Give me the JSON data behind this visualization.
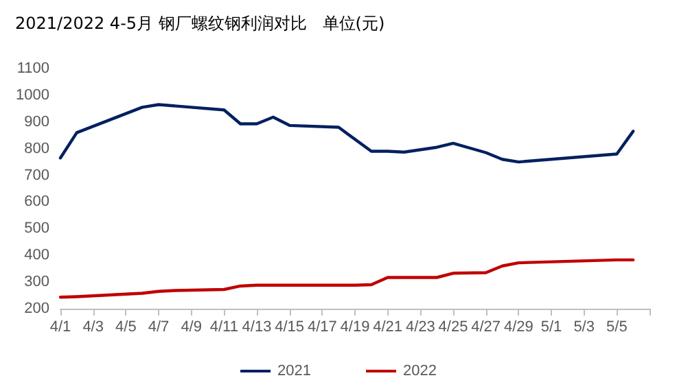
{
  "chart_data": {
    "type": "line",
    "title": "2021/2022 4-5月 钢厂螺纹钢利润对比   单位(元)",
    "xlim": [
      "--04-01",
      "--05-07"
    ],
    "xticks": [
      {
        "value": "--04-01",
        "label": "4/1"
      },
      {
        "value": "--04-03",
        "label": "4/3"
      },
      {
        "value": "--04-05",
        "label": "4/5"
      },
      {
        "value": "--04-07",
        "label": "4/7"
      },
      {
        "value": "--04-09",
        "label": "4/9"
      },
      {
        "value": "--04-11",
        "label": "4/11"
      },
      {
        "value": "--04-13",
        "label": "4/13"
      },
      {
        "value": "--04-15",
        "label": "4/15"
      },
      {
        "value": "--04-17",
        "label": "4/17"
      },
      {
        "value": "--04-19",
        "label": "4/19"
      },
      {
        "value": "--04-21",
        "label": "4/21"
      },
      {
        "value": "--04-23",
        "label": "4/23"
      },
      {
        "value": "--04-25",
        "label": "4/25"
      },
      {
        "value": "--04-27",
        "label": "4/27"
      },
      {
        "value": "--04-29",
        "label": "4/29"
      },
      {
        "value": "--05-01",
        "label": "5/1"
      },
      {
        "value": "--05-03",
        "label": "5/3"
      },
      {
        "value": "--05-05",
        "label": "5/5"
      },
      {
        "value": "--05-07",
        "label": null
      }
    ],
    "ylim": [
      200,
      1100
    ],
    "yticks": [
      200,
      300,
      400,
      500,
      600,
      700,
      800,
      900,
      1000,
      1100
    ],
    "grid": false,
    "legend": "bottom",
    "marker": "none",
    "line_style": "solid",
    "series": [
      {
        "name": "2021",
        "color": "#002060",
        "x": [
          "--04-01",
          "--04-02",
          "--04-06",
          "--04-07",
          "--04-11",
          "--04-12",
          "--04-13",
          "--04-14",
          "--04-15",
          "--04-18",
          "--04-20",
          "--04-21",
          "--04-22",
          "--04-24",
          "--04-25",
          "--04-27",
          "--04-28",
          "--04-29",
          "--05-05",
          "--05-06"
        ],
        "values": [
          765,
          860,
          955,
          965,
          945,
          893,
          893,
          918,
          887,
          880,
          790,
          790,
          787,
          805,
          820,
          785,
          760,
          750,
          780,
          865
        ]
      },
      {
        "name": "2022",
        "color": "#c00000",
        "x": [
          "--04-01",
          "--04-02",
          "--04-06",
          "--04-07",
          "--04-08",
          "--04-11",
          "--04-12",
          "--04-13",
          "--04-15",
          "--04-19",
          "--04-20",
          "--04-21",
          "--04-22",
          "--04-24",
          "--04-25",
          "--04-27",
          "--04-28",
          "--04-29",
          "--05-05",
          "--05-06"
        ],
        "values": [
          243,
          245,
          258,
          265,
          268,
          272,
          285,
          288,
          288,
          288,
          290,
          317,
          317,
          317,
          333,
          335,
          360,
          372,
          383,
          383
        ]
      }
    ]
  }
}
